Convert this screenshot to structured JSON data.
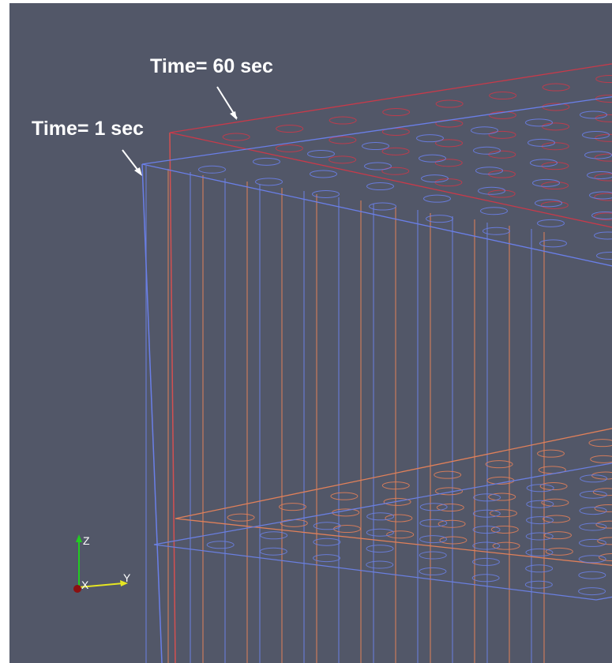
{
  "annotations": {
    "late": "Time= 60 sec",
    "early": "Time= 1 sec"
  },
  "axes_widget": {
    "z": "Z",
    "x": "X",
    "y": "Y"
  }
}
